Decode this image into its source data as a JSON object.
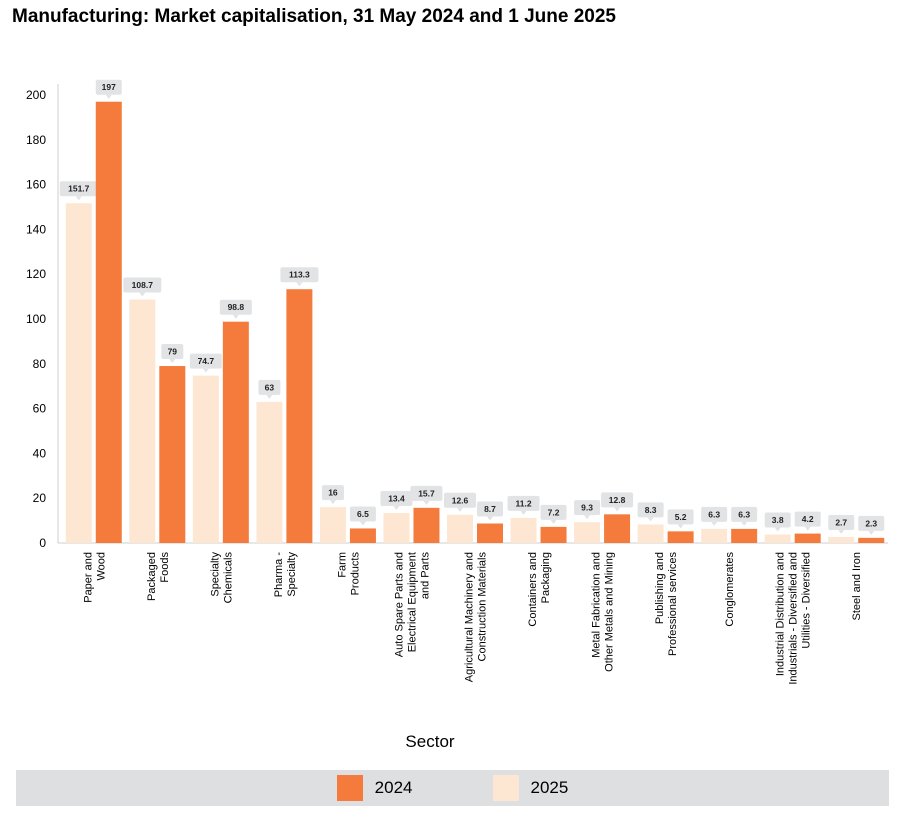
{
  "title": "Manufacturing: Market capitalisation, 31 May 2024 and 1 June 2025",
  "colors": {
    "s2024": "#f47b3c",
    "s2025": "#fde7d3",
    "label_box": "#e2e3e5",
    "axis": "#cfcfcf"
  },
  "chart_data": {
    "type": "bar",
    "title": "Manufacturing: Market capitalisation, 31 May 2024 and 1 June 2025",
    "xlabel": "Sector",
    "ylabel": "",
    "ylim": [
      0,
      205
    ],
    "yticks": [
      0,
      20,
      40,
      60,
      80,
      100,
      120,
      140,
      160,
      180,
      200
    ],
    "grid": false,
    "legend_position": "bottom",
    "categories": [
      [
        "Paper and",
        "Wood"
      ],
      [
        "Packaged",
        "Foods"
      ],
      [
        "Specialty",
        "Chemicals"
      ],
      [
        "Pharma -",
        "Specialty"
      ],
      [
        "Farm",
        "Products"
      ],
      [
        "Auto Spare Parts and",
        "Electrical Equipment",
        "and Parts"
      ],
      [
        "Agricultural Machinery and",
        "Construction Materials"
      ],
      [
        "Containers and",
        "Packaging"
      ],
      [
        "Metal Fabrication and",
        "Other Metals and Mining"
      ],
      [
        "Publishing and",
        "Professional services"
      ],
      [
        "Conglomerates"
      ],
      [
        "Industrial Distribution and",
        "Industrials - Diversified and",
        "Utilities - Diversified"
      ],
      [
        "Steel and Iron"
      ]
    ],
    "series": [
      {
        "name": "2025",
        "color": "#fde7d3",
        "values": [
          151.7,
          108.7,
          74.7,
          63,
          16,
          13.4,
          12.6,
          11.2,
          9.3,
          8.3,
          6.3,
          3.8,
          2.7
        ]
      },
      {
        "name": "2024",
        "color": "#f47b3c",
        "values": [
          197,
          79,
          98.8,
          113.3,
          6.5,
          15.7,
          8.7,
          7.2,
          12.8,
          5.2,
          6.3,
          4.2,
          2.3
        ]
      }
    ],
    "legend": [
      {
        "name": "2024",
        "color": "#f47b3c"
      },
      {
        "name": "2025",
        "color": "#fde7d3"
      }
    ]
  }
}
